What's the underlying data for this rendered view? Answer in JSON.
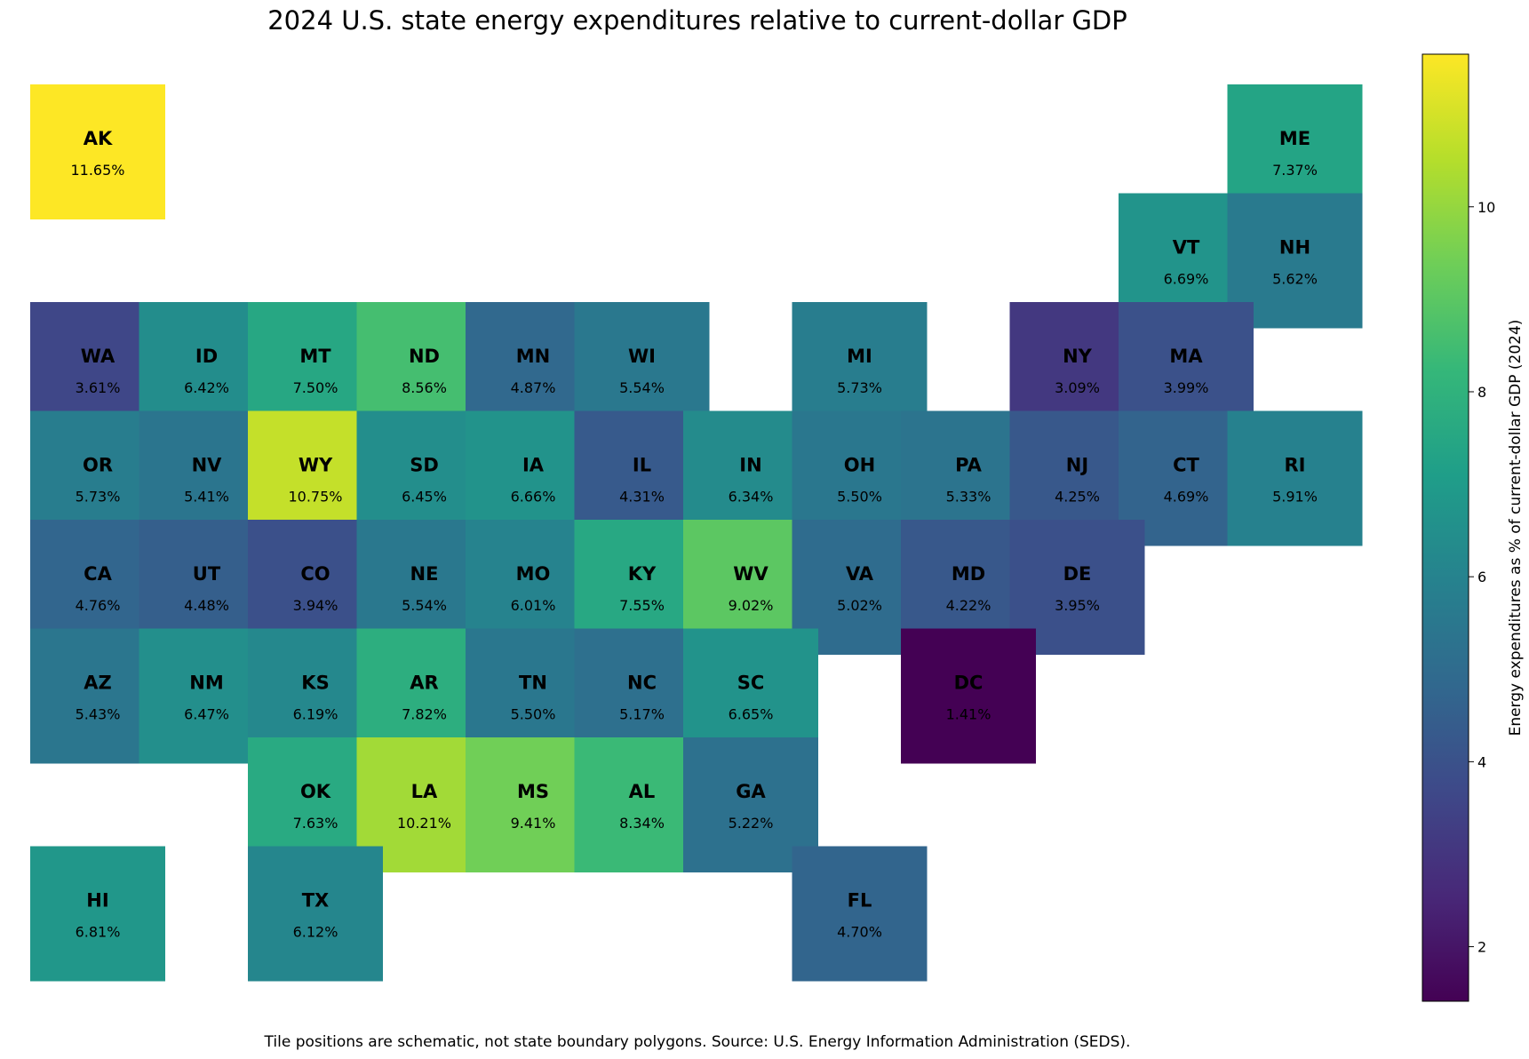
{
  "title": "2024 U.S. state energy expenditures relative to current-dollar GDP",
  "footnote": "Tile positions are schematic, not state boundary polygons. Source: U.S. Energy Information Administration (SEDS).",
  "colorbar": {
    "label": "Energy expenditures as % of current-dollar GDP (2024)",
    "colormap": "viridis",
    "range": [
      1.41,
      11.65
    ],
    "ticks": [
      2,
      4,
      6,
      8,
      10
    ],
    "colors": [
      "#440154",
      "#482878",
      "#3e4989",
      "#31688e",
      "#26828e",
      "#1f9e89",
      "#35b779",
      "#6ece58",
      "#b5de2b",
      "#fde725"
    ]
  },
  "chart_data": {
    "type": "heatmap",
    "title": "2024 U.S. state energy expenditures relative to current-dollar GDP",
    "value_label": "Energy expenditures as % of current-dollar GDP (2024)",
    "value_format": "percent",
    "value_range": [
      1.41,
      11.65
    ],
    "states": [
      {
        "code": "AK",
        "value": 11.65,
        "row": 0,
        "col": 0
      },
      {
        "code": "ME",
        "value": 7.37,
        "row": 0,
        "col": 11
      },
      {
        "code": "VT",
        "value": 6.69,
        "row": 1,
        "col": 10
      },
      {
        "code": "NH",
        "value": 5.62,
        "row": 1,
        "col": 11
      },
      {
        "code": "WA",
        "value": 3.61,
        "row": 2,
        "col": 0
      },
      {
        "code": "ID",
        "value": 6.42,
        "row": 2,
        "col": 1
      },
      {
        "code": "MT",
        "value": 7.5,
        "row": 2,
        "col": 2
      },
      {
        "code": "ND",
        "value": 8.56,
        "row": 2,
        "col": 3
      },
      {
        "code": "MN",
        "value": 4.87,
        "row": 2,
        "col": 4
      },
      {
        "code": "WI",
        "value": 5.54,
        "row": 2,
        "col": 5
      },
      {
        "code": "MI",
        "value": 5.73,
        "row": 2,
        "col": 7
      },
      {
        "code": "NY",
        "value": 3.09,
        "row": 2,
        "col": 9
      },
      {
        "code": "MA",
        "value": 3.99,
        "row": 2,
        "col": 10
      },
      {
        "code": "OR",
        "value": 5.73,
        "row": 3,
        "col": 0
      },
      {
        "code": "NV",
        "value": 5.41,
        "row": 3,
        "col": 1
      },
      {
        "code": "WY",
        "value": 10.75,
        "row": 3,
        "col": 2
      },
      {
        "code": "SD",
        "value": 6.45,
        "row": 3,
        "col": 3
      },
      {
        "code": "IA",
        "value": 6.66,
        "row": 3,
        "col": 4
      },
      {
        "code": "IL",
        "value": 4.31,
        "row": 3,
        "col": 5
      },
      {
        "code": "IN",
        "value": 6.34,
        "row": 3,
        "col": 6
      },
      {
        "code": "OH",
        "value": 5.5,
        "row": 3,
        "col": 7
      },
      {
        "code": "PA",
        "value": 5.33,
        "row": 3,
        "col": 8
      },
      {
        "code": "NJ",
        "value": 4.25,
        "row": 3,
        "col": 9
      },
      {
        "code": "CT",
        "value": 4.69,
        "row": 3,
        "col": 10
      },
      {
        "code": "RI",
        "value": 5.91,
        "row": 3,
        "col": 11
      },
      {
        "code": "CA",
        "value": 4.76,
        "row": 4,
        "col": 0
      },
      {
        "code": "UT",
        "value": 4.48,
        "row": 4,
        "col": 1
      },
      {
        "code": "CO",
        "value": 3.94,
        "row": 4,
        "col": 2
      },
      {
        "code": "NE",
        "value": 5.54,
        "row": 4,
        "col": 3
      },
      {
        "code": "MO",
        "value": 6.01,
        "row": 4,
        "col": 4
      },
      {
        "code": "KY",
        "value": 7.55,
        "row": 4,
        "col": 5
      },
      {
        "code": "WV",
        "value": 9.02,
        "row": 4,
        "col": 6
      },
      {
        "code": "VA",
        "value": 5.02,
        "row": 4,
        "col": 7
      },
      {
        "code": "MD",
        "value": 4.22,
        "row": 4,
        "col": 8
      },
      {
        "code": "DE",
        "value": 3.95,
        "row": 4,
        "col": 9
      },
      {
        "code": "AZ",
        "value": 5.43,
        "row": 5,
        "col": 0
      },
      {
        "code": "NM",
        "value": 6.47,
        "row": 5,
        "col": 1
      },
      {
        "code": "KS",
        "value": 6.19,
        "row": 5,
        "col": 2
      },
      {
        "code": "AR",
        "value": 7.82,
        "row": 5,
        "col": 3
      },
      {
        "code": "TN",
        "value": 5.5,
        "row": 5,
        "col": 4
      },
      {
        "code": "NC",
        "value": 5.17,
        "row": 5,
        "col": 5
      },
      {
        "code": "SC",
        "value": 6.65,
        "row": 5,
        "col": 6
      },
      {
        "code": "DC",
        "value": 1.41,
        "row": 5,
        "col": 8
      },
      {
        "code": "OK",
        "value": 7.63,
        "row": 6,
        "col": 2
      },
      {
        "code": "LA",
        "value": 10.21,
        "row": 6,
        "col": 3
      },
      {
        "code": "MS",
        "value": 9.41,
        "row": 6,
        "col": 4
      },
      {
        "code": "AL",
        "value": 8.34,
        "row": 6,
        "col": 5
      },
      {
        "code": "GA",
        "value": 5.22,
        "row": 6,
        "col": 6
      },
      {
        "code": "HI",
        "value": 6.81,
        "row": 7,
        "col": 0
      },
      {
        "code": "TX",
        "value": 6.12,
        "row": 7,
        "col": 2
      },
      {
        "code": "FL",
        "value": 4.7,
        "row": 7,
        "col": 7
      }
    ]
  }
}
